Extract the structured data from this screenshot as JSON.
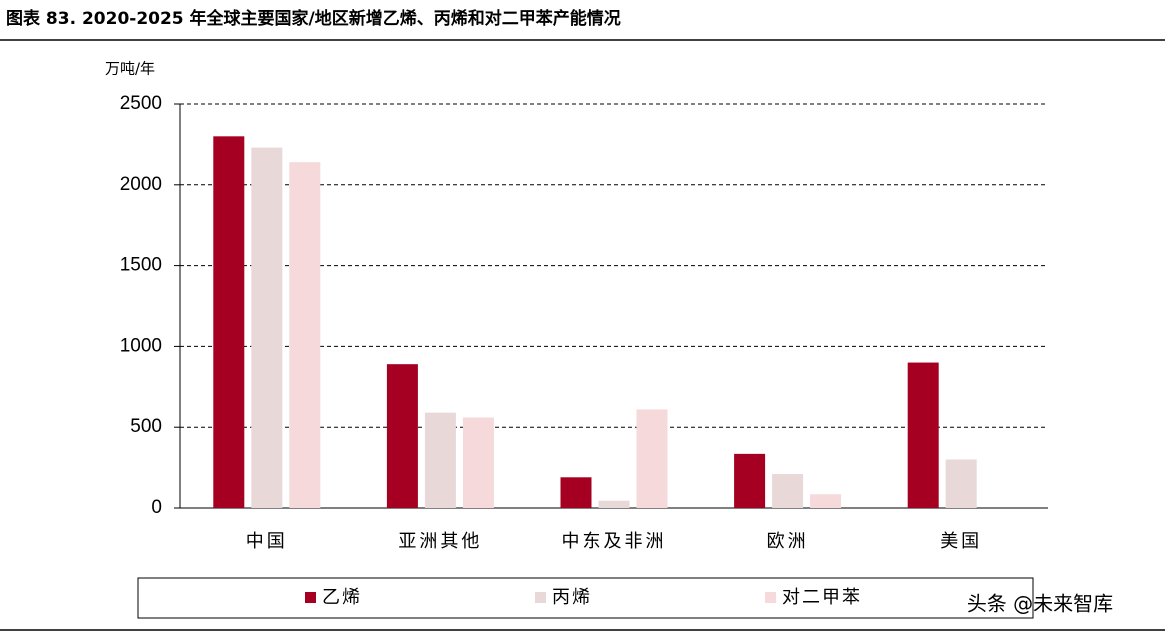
{
  "chart_data": {
    "type": "bar",
    "title": "图表 83. 2020-2025 年全球主要国家/地区新增乙烯、丙烯和对二甲苯产能情况",
    "y_label": "万吨/年",
    "categories": [
      "中国",
      "亚洲其他",
      "中东及非洲",
      "欧洲",
      "美国"
    ],
    "series": [
      {
        "name": "乙烯",
        "color": "#a50021",
        "values": [
          2300,
          890,
          190,
          335,
          900
        ]
      },
      {
        "name": "丙烯",
        "color": "#e8d8d8",
        "values": [
          2230,
          590,
          45,
          210,
          300
        ]
      },
      {
        "name": "对二甲苯",
        "color": "#f6d9da",
        "values": [
          2140,
          560,
          610,
          85,
          null
        ]
      }
    ],
    "ylim": [
      0,
      2500
    ],
    "yticks": [
      0,
      500,
      1000,
      1500,
      2000,
      2500
    ],
    "grid": true,
    "watermark": "头条 @未来智库"
  }
}
